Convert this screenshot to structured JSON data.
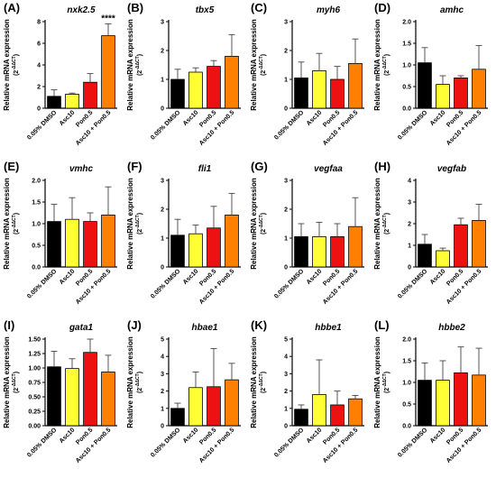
{
  "figure": {
    "ylabel": "Relative mRNA expression",
    "ylabel_unit": "(2",
    "ylabel_sup": "-ΔΔCT",
    "ylabel_close": ")",
    "categories": [
      "0.05% DMSO",
      "Asc10",
      "Pon0.5",
      "Asc10 + Pon0.5"
    ],
    "colors": [
      "#000000",
      "#ffff33",
      "#ee1111",
      "#ff7f00"
    ]
  },
  "chart_data": [
    {
      "type": "bar",
      "panel": "(A)",
      "title": "nxk2.5",
      "ylim": [
        0,
        8
      ],
      "yticks": [
        0,
        2,
        4,
        6,
        8
      ],
      "categories": [
        "0.05% DMSO",
        "Asc10",
        "Pon0.5",
        "Asc10 + Pon0.5"
      ],
      "values": [
        1.1,
        1.3,
        2.4,
        6.7
      ],
      "errors": [
        0.6,
        0.1,
        0.8,
        1.1
      ],
      "annotations": [
        "",
        "",
        "",
        "****"
      ]
    },
    {
      "type": "bar",
      "panel": "(B)",
      "title": "tbx5",
      "ylim": [
        0,
        3
      ],
      "yticks": [
        0,
        1,
        2,
        3
      ],
      "categories": [
        "0.05% DMSO",
        "Asc10",
        "Pon0.5",
        "Asc10 + Pon0.5"
      ],
      "values": [
        1.0,
        1.25,
        1.45,
        1.8
      ],
      "errors": [
        0.35,
        0.15,
        0.2,
        0.75
      ],
      "annotations": [
        "",
        "",
        "",
        ""
      ]
    },
    {
      "type": "bar",
      "panel": "(C)",
      "title": "myh6",
      "ylim": [
        0,
        3
      ],
      "yticks": [
        0,
        1,
        2,
        3
      ],
      "categories": [
        "0.05% DMSO",
        "Asc10",
        "Pon0.5",
        "Asc10 + Pon0.5"
      ],
      "values": [
        1.05,
        1.3,
        1.0,
        1.55
      ],
      "errors": [
        0.55,
        0.6,
        0.45,
        0.85
      ],
      "annotations": [
        "",
        "",
        "",
        ""
      ]
    },
    {
      "type": "bar",
      "panel": "(D)",
      "title": "amhc",
      "ylim": [
        0,
        2
      ],
      "yticks": [
        0.0,
        0.5,
        1.0,
        1.5,
        2.0
      ],
      "categories": [
        "0.05% DMSO",
        "Asc10",
        "Pon0.5",
        "Asc10 + Pon0.5"
      ],
      "values": [
        1.05,
        0.55,
        0.7,
        0.9
      ],
      "errors": [
        0.35,
        0.2,
        0.05,
        0.55
      ],
      "annotations": [
        "",
        "",
        "",
        ""
      ]
    },
    {
      "type": "bar",
      "panel": "(E)",
      "title": "vmhc",
      "ylim": [
        0,
        2
      ],
      "yticks": [
        0.0,
        0.5,
        1.0,
        1.5,
        2.0
      ],
      "categories": [
        "0.05% DMSO",
        "Asc10",
        "Pon0.5",
        "Asc10 + Pon0.5"
      ],
      "values": [
        1.05,
        1.1,
        1.05,
        1.2
      ],
      "errors": [
        0.4,
        0.5,
        0.2,
        0.65
      ],
      "annotations": [
        "",
        "",
        "",
        ""
      ]
    },
    {
      "type": "bar",
      "panel": "(F)",
      "title": "fli1",
      "ylim": [
        0,
        3
      ],
      "yticks": [
        0,
        1,
        2,
        3
      ],
      "categories": [
        "0.05% DMSO",
        "Asc10",
        "Pon0.5",
        "Asc10 + Pon0.5"
      ],
      "values": [
        1.1,
        1.15,
        1.35,
        1.8
      ],
      "errors": [
        0.55,
        0.3,
        0.75,
        0.75
      ],
      "annotations": [
        "",
        "",
        "",
        ""
      ]
    },
    {
      "type": "bar",
      "panel": "(G)",
      "title": "vegfaa",
      "ylim": [
        0,
        3
      ],
      "yticks": [
        0,
        1,
        2,
        3
      ],
      "categories": [
        "0.05% DMSO",
        "Asc10",
        "Pon0.5",
        "Asc10 + Pon0.5"
      ],
      "values": [
        1.05,
        1.05,
        1.05,
        1.4
      ],
      "errors": [
        0.45,
        0.5,
        0.45,
        1.0
      ],
      "annotations": [
        "",
        "",
        "",
        ""
      ]
    },
    {
      "type": "bar",
      "panel": "(H)",
      "title": "vegfab",
      "ylim": [
        0,
        4
      ],
      "yticks": [
        0,
        1,
        2,
        3,
        4
      ],
      "categories": [
        "0.05% DMSO",
        "Asc10",
        "Pon0.5",
        "Asc10 + Pon0.5"
      ],
      "values": [
        1.05,
        0.75,
        1.95,
        2.15
      ],
      "errors": [
        0.45,
        0.12,
        0.3,
        0.75
      ],
      "annotations": [
        "",
        "",
        "",
        ""
      ]
    },
    {
      "type": "bar",
      "panel": "(I)",
      "title": "gata1",
      "ylim": [
        0,
        1.5
      ],
      "yticks": [
        0.0,
        0.25,
        0.5,
        0.75,
        1.0,
        1.25,
        1.5
      ],
      "categories": [
        "0.05% DMSO",
        "Asc10",
        "Pon0.5",
        "Asc10 + Pon0.5"
      ],
      "values": [
        1.02,
        0.99,
        1.27,
        0.93
      ],
      "errors": [
        0.27,
        0.17,
        0.23,
        0.29
      ],
      "annotations": [
        "",
        "",
        "",
        ""
      ]
    },
    {
      "type": "bar",
      "panel": "(J)",
      "title": "hbae1",
      "ylim": [
        0,
        5
      ],
      "yticks": [
        0,
        1,
        2,
        3,
        4,
        5
      ],
      "categories": [
        "0.05% DMSO",
        "Asc10",
        "Pon0.5",
        "Asc10 + Pon0.5"
      ],
      "values": [
        1.0,
        2.2,
        2.25,
        2.65
      ],
      "errors": [
        0.3,
        0.9,
        2.2,
        0.95
      ],
      "annotations": [
        "",
        "",
        "",
        ""
      ]
    },
    {
      "type": "bar",
      "panel": "(K)",
      "title": "hbbe1",
      "ylim": [
        0,
        5
      ],
      "yticks": [
        0,
        1,
        2,
        3,
        4,
        5
      ],
      "categories": [
        "0.05% DMSO",
        "Asc10",
        "Pon0.5",
        "Asc10 + Pon0.5"
      ],
      "values": [
        0.95,
        1.8,
        1.2,
        1.55
      ],
      "errors": [
        0.25,
        2.0,
        0.8,
        0.2
      ],
      "annotations": [
        "",
        "",
        "",
        ""
      ]
    },
    {
      "type": "bar",
      "panel": "(L)",
      "title": "hbbe2",
      "ylim": [
        0,
        2
      ],
      "yticks": [
        0.0,
        0.5,
        1.0,
        1.5,
        2.0
      ],
      "categories": [
        "0.05% DMSO",
        "Asc10",
        "Pon0.5",
        "Asc10 + Pon0.5"
      ],
      "values": [
        1.05,
        1.05,
        1.22,
        1.17
      ],
      "errors": [
        0.4,
        0.45,
        0.6,
        0.62
      ],
      "annotations": [
        "",
        "",
        "",
        ""
      ]
    }
  ]
}
